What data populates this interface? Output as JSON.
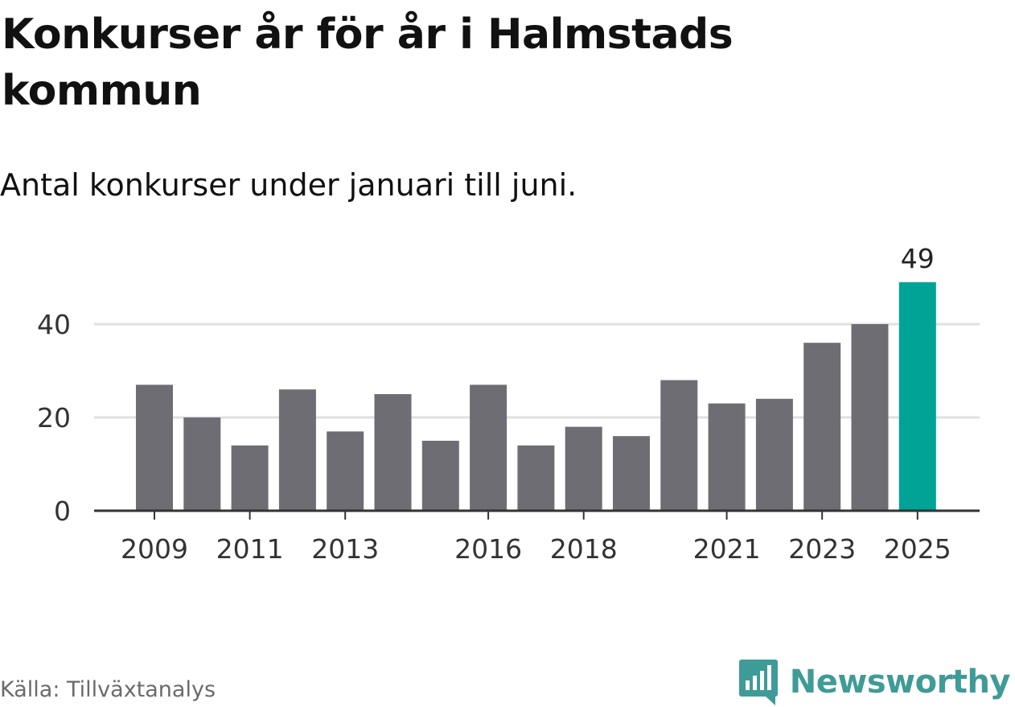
{
  "title": "Konkurser år för år i Halmstads kommun",
  "subtitle": "Antal konkurser under januari till juni.",
  "source": "Källa: Tillväxtanalys",
  "brand": {
    "name": "Newsworthy",
    "icon": "bar-chart-speech-bubble-icon",
    "color": "#3f9b97"
  },
  "chart_data": {
    "type": "bar",
    "categories": [
      "2009",
      "2010",
      "2011",
      "2012",
      "2013",
      "2014",
      "2015",
      "2016",
      "2017",
      "2018",
      "2019",
      "2020",
      "2021",
      "2022",
      "2023",
      "2024",
      "2025"
    ],
    "values": [
      27,
      20,
      14,
      26,
      17,
      25,
      15,
      27,
      14,
      18,
      16,
      28,
      23,
      24,
      36,
      40,
      49
    ],
    "x_tick_labels": [
      "2009",
      "2011",
      "2013",
      "2016",
      "2018",
      "2021",
      "2023",
      "2025"
    ],
    "y_ticks": [
      0,
      20,
      40
    ],
    "ylim": [
      0,
      49
    ],
    "highlight": {
      "category": "2025",
      "label": "49"
    },
    "colors": {
      "bar": "#6e6d73",
      "highlight": "#00a396",
      "grid": "#e0e0e0",
      "axis": "#333333"
    },
    "grid": true
  }
}
